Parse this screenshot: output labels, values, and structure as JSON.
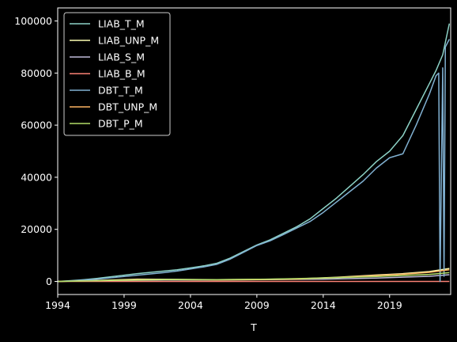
{
  "chart_data": {
    "type": "line",
    "xlabel": "T",
    "ylabel": "",
    "xlim": [
      1994,
      2023.6
    ],
    "ylim": [
      -5000,
      105000
    ],
    "x_ticks": [
      1994,
      1999,
      2004,
      2009,
      2014,
      2019
    ],
    "x_tick_labels": [
      "1994",
      "1999",
      "2004",
      "2009",
      "2014",
      "2019"
    ],
    "y_ticks": [
      0,
      20000,
      40000,
      60000,
      80000,
      100000
    ],
    "y_tick_labels": [
      "0",
      "20000",
      "40000",
      "60000",
      "80000",
      "100000"
    ],
    "grid": false,
    "legend_position": "upper-left",
    "colors": [
      "#8dd3c7",
      "#feffb3",
      "#bfbbd9",
      "#fa8174",
      "#81b1d2",
      "#fdb462",
      "#b3de69"
    ],
    "series": [
      {
        "name": "LIAB_T_M",
        "x": [
          1994,
          1995,
          1996,
          1997,
          1998,
          1999,
          2000,
          2001,
          2002,
          2003,
          2004,
          2005,
          2006,
          2007,
          2008,
          2009,
          2010,
          2011,
          2012,
          2013,
          2014,
          2015,
          2016,
          2017,
          2018,
          2019,
          2020,
          2021,
          2022,
          2022.5,
          2023,
          2023.5
        ],
        "y": [
          0,
          300,
          700,
          1200,
          1800,
          2400,
          3000,
          3500,
          4000,
          4500,
          5200,
          6000,
          7000,
          9000,
          11500,
          14000,
          16000,
          18500,
          21000,
          24000,
          28000,
          32000,
          36500,
          41000,
          46000,
          50000,
          56000,
          66000,
          76000,
          81000,
          87000,
          99000
        ]
      },
      {
        "name": "LIAB_UNP_M",
        "x": [
          1994,
          1997,
          2000,
          2003,
          2006,
          2009,
          2012,
          2015,
          2018,
          2020,
          2022,
          2023.5
        ],
        "y": [
          0,
          400,
          900,
          800,
          700,
          800,
          1000,
          1600,
          2500,
          3000,
          3800,
          5000
        ]
      },
      {
        "name": "LIAB_S_M",
        "x": [
          1994,
          1998,
          2002,
          2006,
          2010,
          2014,
          2018,
          2022,
          2023.5
        ],
        "y": [
          0,
          300,
          600,
          600,
          700,
          900,
          1300,
          2000,
          2600
        ]
      },
      {
        "name": "LIAB_B_M",
        "x": [
          1994,
          2000,
          2006,
          2012,
          2018,
          2023.5
        ],
        "y": [
          0,
          0,
          0,
          0,
          0,
          0
        ]
      },
      {
        "name": "DBT_T_M",
        "x": [
          1994,
          1995,
          1996,
          1997,
          1998,
          1999,
          2000,
          2001,
          2002,
          2003,
          2004,
          2005,
          2006,
          2007,
          2008,
          2009,
          2010,
          2011,
          2012,
          2013,
          2014,
          2015,
          2016,
          2017,
          2018,
          2019,
          2020,
          2021,
          2022,
          2022.5,
          2022.7,
          2022.8,
          2023,
          2023.1,
          2023.2,
          2023.5
        ],
        "y": [
          0,
          200,
          500,
          900,
          1400,
          1900,
          2400,
          2900,
          3400,
          4000,
          4800,
          5600,
          6600,
          8600,
          11200,
          13800,
          15600,
          18000,
          20500,
          23000,
          26500,
          30500,
          34500,
          38500,
          43500,
          47500,
          49000,
          60000,
          72000,
          79000,
          80000,
          0,
          82000,
          2000,
          90000,
          93000
        ]
      },
      {
        "name": "DBT_UNP_M",
        "x": [
          1994,
          1997,
          2000,
          2003,
          2006,
          2009,
          2012,
          2015,
          2018,
          2020,
          2022,
          2023.5
        ],
        "y": [
          0,
          300,
          700,
          700,
          600,
          700,
          900,
          1500,
          2300,
          2800,
          3500,
          4500
        ]
      },
      {
        "name": "DBT_P_M",
        "x": [
          1994,
          1998,
          2002,
          2006,
          2010,
          2014,
          2018,
          2022,
          2023.5
        ],
        "y": [
          0,
          400,
          700,
          700,
          900,
          1300,
          1900,
          2700,
          3400
        ]
      }
    ]
  }
}
